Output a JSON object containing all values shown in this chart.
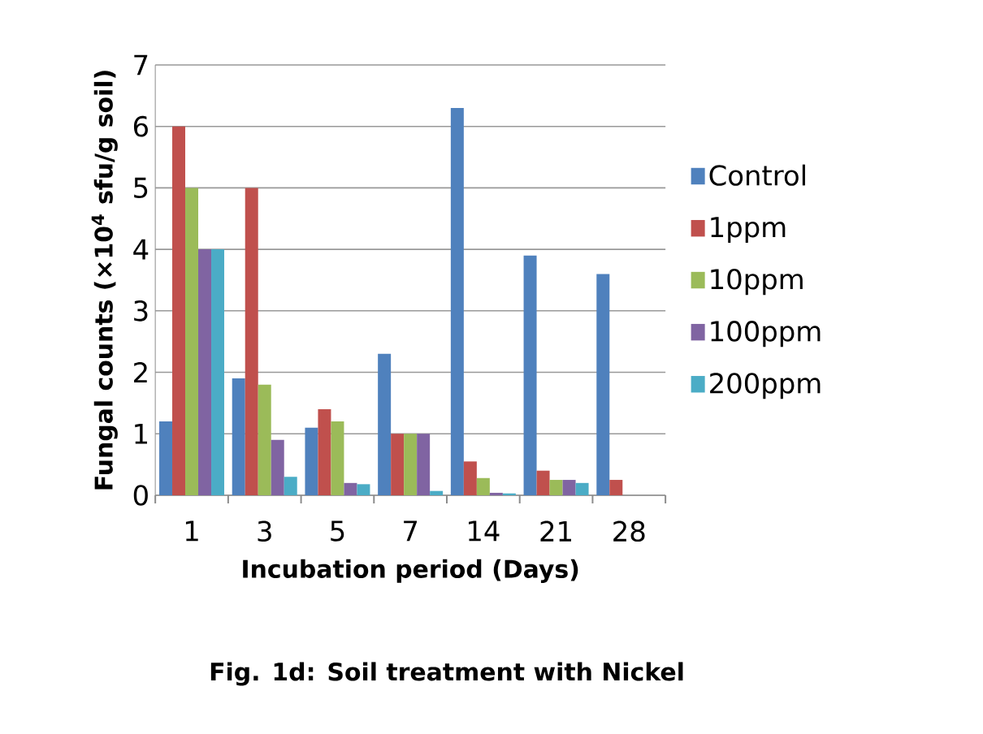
{
  "chart_data": {
    "type": "bar",
    "title": "Fig. 1d: Soil treatment with Nickel",
    "xlabel": "Incubation period (Days)",
    "ylabel": "Fungal counts (×10$^{4}$ sfu/g soil)",
    "categories": [
      "1",
      "3",
      "5",
      "7",
      "14",
      "21",
      "28"
    ],
    "series": [
      {
        "name": "Control",
        "color": "#4f81bd",
        "values": [
          1.2,
          1.9,
          1.1,
          2.3,
          6.3,
          3.9,
          3.6
        ]
      },
      {
        "name": "1ppm",
        "color": "#c0504d",
        "values": [
          6,
          5,
          1.4,
          1,
          0.55,
          0.4,
          0.25
        ]
      },
      {
        "name": "10ppm",
        "color": "#9bbb59",
        "values": [
          5,
          1.8,
          1.2,
          1,
          0.28,
          0.25,
          null
        ]
      },
      {
        "name": "100ppm",
        "color": "#8064a2",
        "values": [
          4,
          0.9,
          0.2,
          1,
          0.04,
          0.25,
          null
        ]
      },
      {
        "name": "200ppm",
        "color": "#4bacc6",
        "values": [
          4,
          0.3,
          0.18,
          0.07,
          0.03,
          0.2,
          null
        ]
      }
    ],
    "ylim": [
      0,
      7
    ],
    "yticks": [
      0,
      1,
      2,
      3,
      4,
      5,
      6,
      7
    ],
    "grid": "y",
    "legend": "right"
  }
}
